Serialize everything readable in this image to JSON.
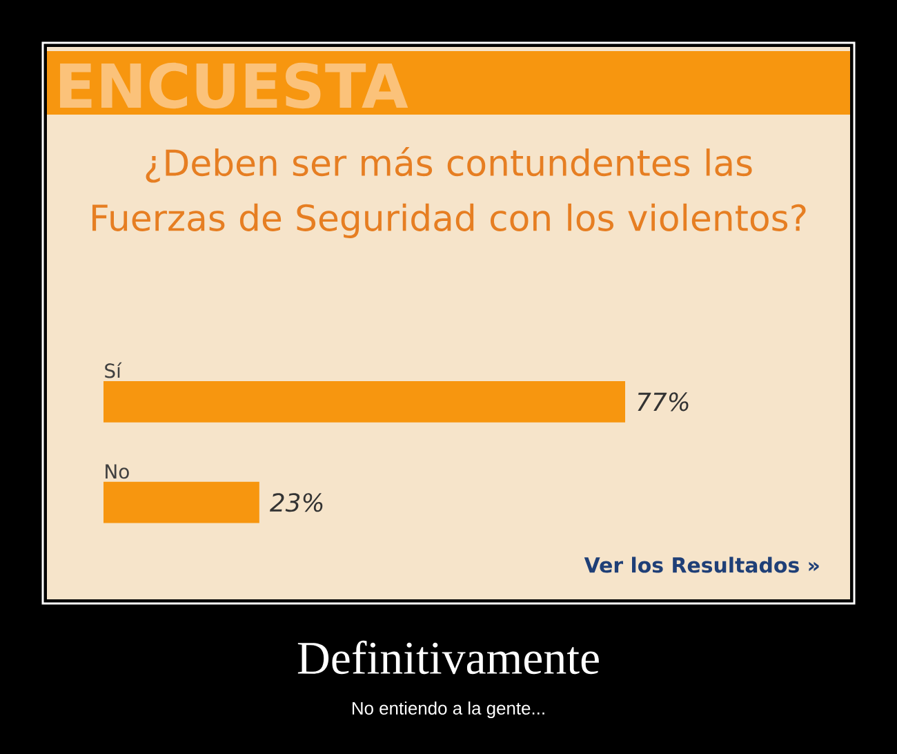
{
  "chart_data": {
    "type": "bar",
    "orientation": "horizontal",
    "title": "¿Deben ser más contundentes las Fuerzas de Seguridad con los violentos?",
    "categories": [
      "Sí",
      "No"
    ],
    "values": [
      77,
      23
    ],
    "value_labels": [
      "77%",
      "23%"
    ],
    "color": "#f7960f",
    "annotations": [
      "ENCUESTA",
      "Ver los Resultados »",
      "Definitivamente",
      "No entiendo a la gente..."
    ]
  }
}
